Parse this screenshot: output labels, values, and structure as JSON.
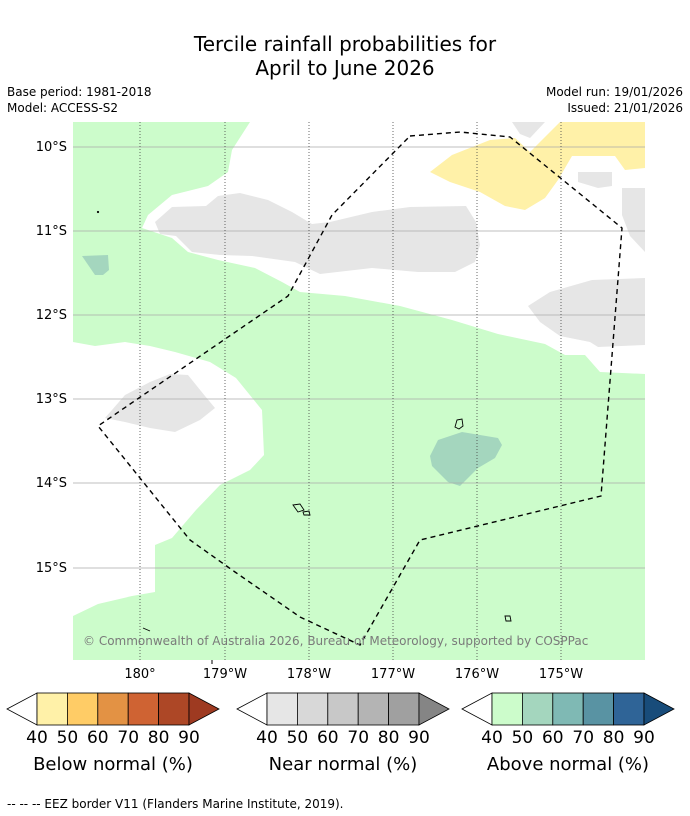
{
  "title": {
    "line1": "Tercile rainfall probabilities for",
    "line2": "April to June 2026"
  },
  "meta": {
    "base_period": "Base period: 1981-2018",
    "model": "Model: ACCESS-S2",
    "model_run": "Model run: 19/01/2026",
    "issued": "Issued: 21/01/2026"
  },
  "map": {
    "lat_ticks": [
      "10°S",
      "11°S",
      "12°S",
      "13°S",
      "14°S",
      "15°S"
    ],
    "lon_ticks": [
      "180°",
      "179°W",
      "178°W",
      "177°W",
      "176°W",
      "175°W"
    ],
    "credit": "© Commonwealth of Australia 2026, Bureau of Meteorology, supported by COSPPac",
    "categories": {
      "below_50": "#fff1a8",
      "near_50": "#e6e6e6",
      "above_50": "#ccfccb",
      "above_60": "#a4d6be",
      "eez_border": "#000000"
    }
  },
  "colorbars": [
    {
      "title": "Below normal (%)",
      "ticks": [
        "40",
        "50",
        "60",
        "70",
        "80",
        "90"
      ],
      "colors": [
        "#ffffff",
        "#fff1a8",
        "#ffcc66",
        "#e39244",
        "#cf6333",
        "#ad4726",
        "#9e3a21"
      ]
    },
    {
      "title": "Near normal (%)",
      "ticks": [
        "40",
        "50",
        "60",
        "70",
        "80",
        "90"
      ],
      "colors": [
        "#ffffff",
        "#e6e6e6",
        "#d8d8d8",
        "#c8c8c8",
        "#b4b4b4",
        "#a0a0a0",
        "#858585"
      ]
    },
    {
      "title": "Above normal (%)",
      "ticks": [
        "40",
        "50",
        "60",
        "70",
        "80",
        "90"
      ],
      "colors": [
        "#ffffff",
        "#ccfccb",
        "#a4d6be",
        "#7fb9b4",
        "#5993a3",
        "#2f6497",
        "#184c7a"
      ]
    }
  ],
  "footer": {
    "legend_text": "--  --  -- EEZ border V11 (Flanders Marine Institute, 2019)."
  }
}
